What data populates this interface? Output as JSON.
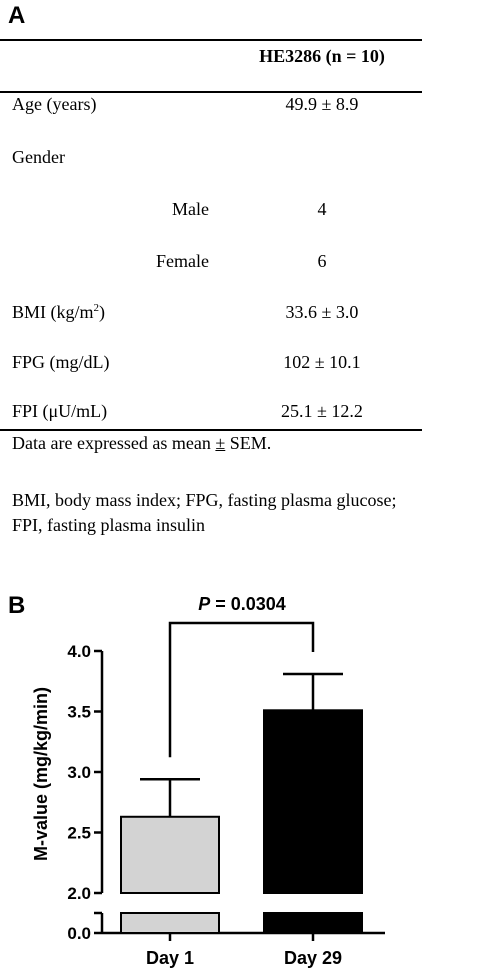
{
  "panel_a": {
    "letter": "A",
    "column_header": "HE3286 (n = 10)",
    "rows": [
      {
        "label": "Age (years)",
        "value": "49.9 ± 8.9"
      },
      {
        "label": "Gender",
        "value": ""
      },
      {
        "label": "Male",
        "value": "4"
      },
      {
        "label": "Female",
        "value": "6"
      },
      {
        "label": "BMI (kg/m",
        "label_sup": "2",
        "label_tail": ")",
        "value": "33.6 ± 3.0"
      },
      {
        "label": "FPG (mg/dL)",
        "value": "102 ± 10.1"
      },
      {
        "label": "FPI (μU/mL)",
        "value": "25.1 ± 12.2"
      }
    ],
    "footnote_1_pre": "Data are expressed as mean ",
    "footnote_1_pm": "±",
    "footnote_1_post": " SEM.",
    "footnote_2": "BMI, body mass index; FPG, fasting plasma glucose;",
    "footnote_3": "FPI, fasting plasma insulin"
  },
  "panel_b": {
    "letter": "B",
    "p_label_italic": "P",
    "p_label_rest": " = 0.0304"
  },
  "chart_data": {
    "type": "bar",
    "categories": [
      "Day 1",
      "Day 29"
    ],
    "values": [
      2.63,
      3.51
    ],
    "errors": [
      0.31,
      0.3
    ],
    "bar_colors": [
      "#d3d3d3",
      "#000000"
    ],
    "ylabel": "M-value (mg/kg/min)",
    "ylim": [
      0.0,
      4.0
    ],
    "axis_break": [
      0.0,
      2.0
    ],
    "yticks": [
      "0.0",
      "2.0",
      "2.5",
      "3.0",
      "3.5",
      "4.0"
    ],
    "grid": false,
    "annotation": "P = 0.0304"
  }
}
